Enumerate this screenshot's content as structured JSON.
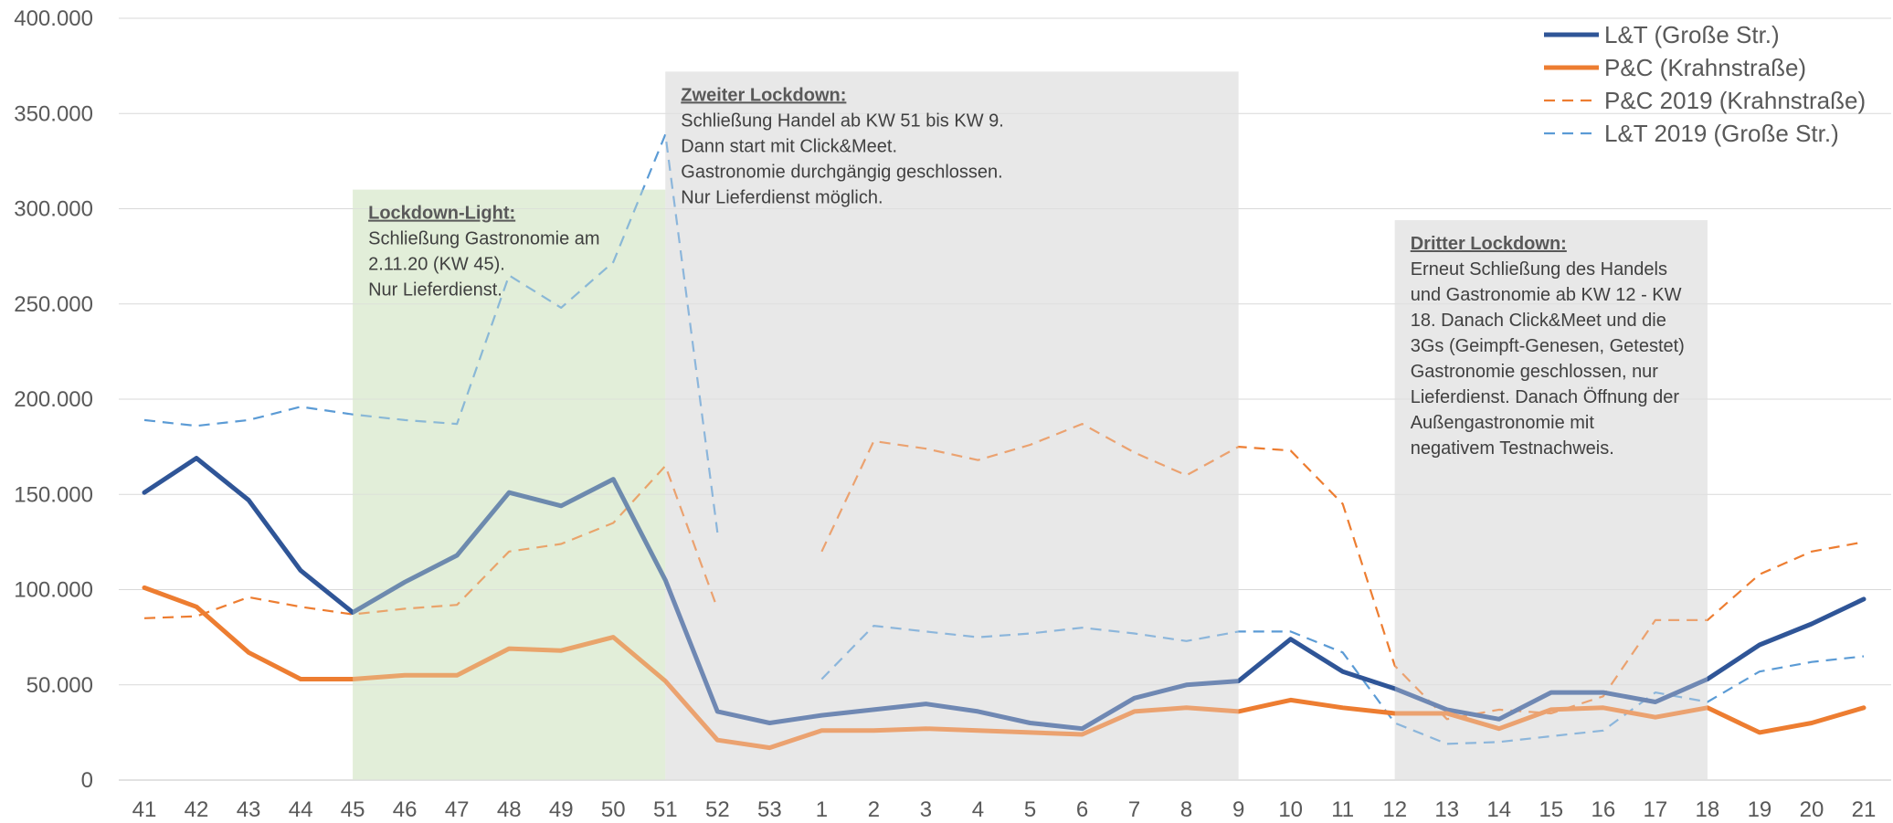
{
  "chart_data": {
    "type": "line",
    "categories": [
      "41",
      "42",
      "43",
      "44",
      "45",
      "46",
      "47",
      "48",
      "49",
      "50",
      "51",
      "52",
      "53",
      "1",
      "2",
      "3",
      "4",
      "5",
      "6",
      "7",
      "8",
      "9",
      "10",
      "11",
      "12",
      "13",
      "14",
      "15",
      "16",
      "17",
      "18",
      "19",
      "20",
      "21"
    ],
    "yticks": [
      "0",
      "50.000",
      "100.000",
      "150.000",
      "200.000",
      "250.000",
      "300.000",
      "350.000",
      "400.000"
    ],
    "ylim": [
      0,
      400000
    ],
    "grid": true,
    "legend_position": "top-right",
    "series": [
      {
        "name": "L&T (Große Str.)",
        "color": "#2F5597",
        "style": "solid",
        "values": [
          151000,
          169000,
          147000,
          110000,
          88000,
          104000,
          118000,
          151000,
          144000,
          158000,
          105000,
          36000,
          30000,
          34000,
          37000,
          40000,
          36000,
          30000,
          27000,
          43000,
          50000,
          52000,
          74000,
          57000,
          48000,
          37000,
          32000,
          46000,
          46000,
          41000,
          53000,
          71000,
          82000,
          95000
        ]
      },
      {
        "name": "P&C (Krahnstraße)",
        "color": "#ED7D31",
        "style": "solid",
        "values": [
          101000,
          91000,
          67000,
          53000,
          53000,
          55000,
          55000,
          69000,
          68000,
          75000,
          52000,
          21000,
          17000,
          26000,
          26000,
          27000,
          26000,
          25000,
          24000,
          36000,
          38000,
          36000,
          42000,
          38000,
          35000,
          35000,
          27000,
          37000,
          38000,
          33000,
          38000,
          25000,
          30000,
          38000
        ]
      },
      {
        "name": "P&C 2019 (Krahnstraße)",
        "color": "#ED7D31",
        "style": "dashed",
        "values": [
          85000,
          86000,
          96000,
          91000,
          87000,
          90000,
          92000,
          120000,
          124000,
          135000,
          165000,
          90000,
          null,
          120000,
          178000,
          174000,
          168000,
          176000,
          187000,
          172000,
          160000,
          175000,
          173000,
          145000,
          60000,
          32000,
          37000,
          35000,
          44000,
          84000,
          84000,
          108000,
          120000,
          125000
        ]
      },
      {
        "name": "L&T 2019 (Große Str.)",
        "color": "#5B9BD5",
        "style": "dashed",
        "values": [
          189000,
          186000,
          189000,
          196000,
          192000,
          189000,
          187000,
          265000,
          248000,
          272000,
          339000,
          130000,
          null,
          53000,
          81000,
          78000,
          75000,
          77000,
          80000,
          77000,
          73000,
          78000,
          78000,
          67000,
          30000,
          19000,
          20000,
          23000,
          26000,
          46000,
          41000,
          57000,
          62000,
          65000
        ]
      }
    ],
    "annotations": [
      {
        "title": "Lockdown-Light:",
        "lines": [
          "Schließung Gastronomie am",
          "2.11.20 (KW 45).",
          "Nur Lieferdienst."
        ],
        "from": "45",
        "to": "51",
        "fill": "#E2EFD9",
        "top": 310000
      },
      {
        "title": "Zweiter Lockdown:",
        "lines": [
          "Schließung Handel ab KW 51 bis KW 9.",
          "Dann start mit Click&Meet.",
          "Gastronomie durchgängig geschlossen.",
          "Nur Lieferdienst möglich."
        ],
        "from": "51",
        "to": "9",
        "fill": "#E8E8E8",
        "top": 372000
      },
      {
        "title": "Dritter Lockdown:",
        "lines": [
          "Erneut Schließung des Handels",
          "und Gastronomie ab KW 12 - KW",
          "18. Danach Click&Meet und die",
          "3Gs (Geimpft-Genesen, Getestet)",
          "Gastronomie geschlossen, nur",
          "Lieferdienst. Danach Öffnung der",
          "Außengastronomie mit",
          "negativem Testnachweis."
        ],
        "from": "12",
        "to": "18",
        "fill": "#E8E8E8",
        "top": 294000
      }
    ]
  }
}
